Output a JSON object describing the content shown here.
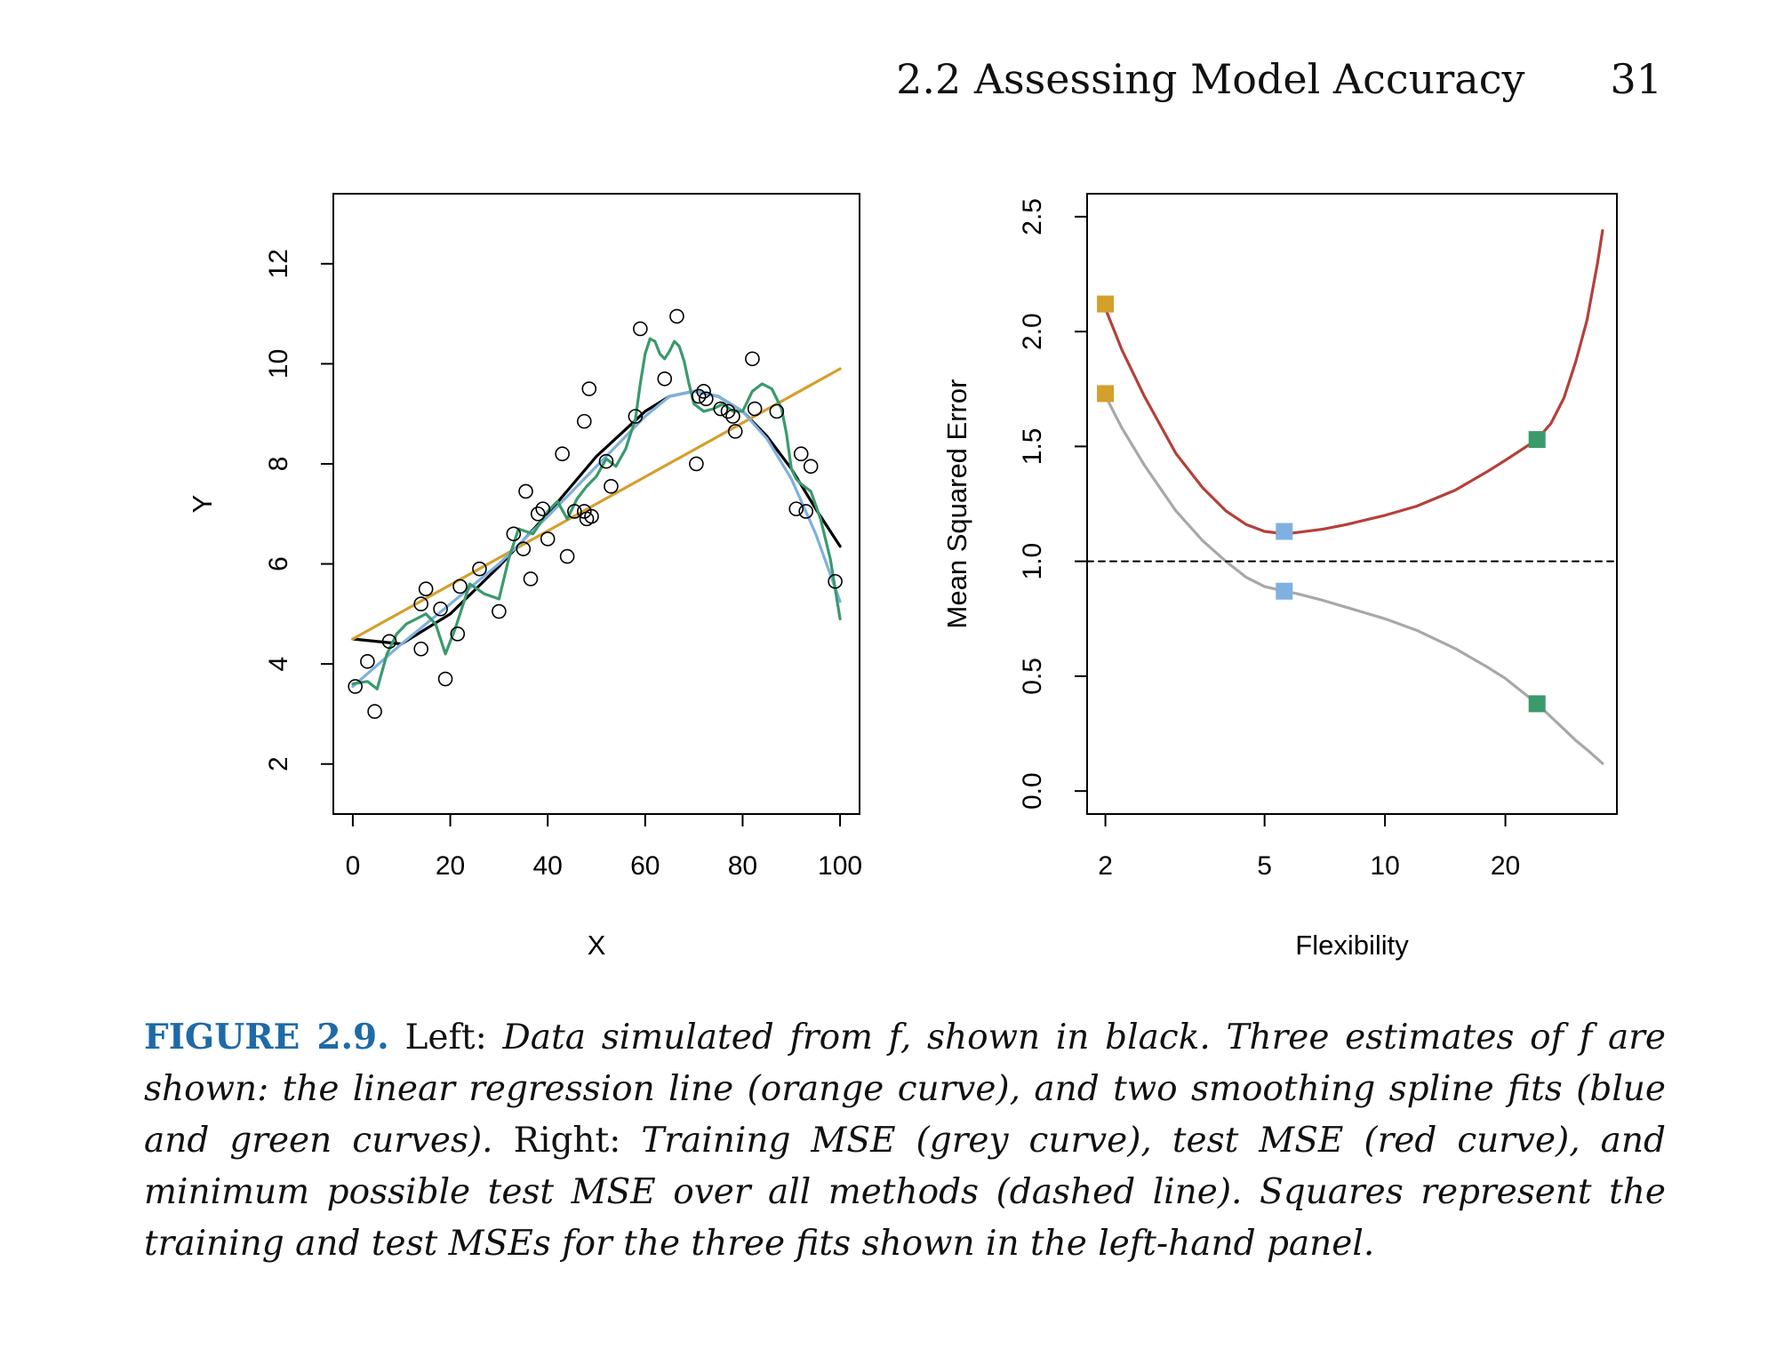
{
  "header": {
    "section_title": "2.2 Assessing Model Accuracy",
    "page_number": "31"
  },
  "chart_data": [
    {
      "type": "scatter",
      "panel": "left",
      "title": "",
      "xlabel": "X",
      "ylabel": "Y",
      "xlim": [
        -4,
        104
      ],
      "ylim": [
        1,
        13.4
      ],
      "xticks": [
        0,
        20,
        40,
        60,
        80,
        100
      ],
      "yticks": [
        2,
        4,
        6,
        8,
        10,
        12
      ],
      "grid": false,
      "points": [
        [
          0.5,
          3.55
        ],
        [
          3,
          4.05
        ],
        [
          4.5,
          3.05
        ],
        [
          7.5,
          4.45
        ],
        [
          14,
          4.3
        ],
        [
          14,
          5.2
        ],
        [
          15,
          5.5
        ],
        [
          18,
          5.1
        ],
        [
          19,
          3.7
        ],
        [
          21.5,
          4.6
        ],
        [
          22,
          5.55
        ],
        [
          26,
          5.9
        ],
        [
          30,
          5.05
        ],
        [
          33,
          6.6
        ],
        [
          35,
          6.3
        ],
        [
          35.5,
          7.45
        ],
        [
          36.5,
          5.7
        ],
        [
          38,
          7.0
        ],
        [
          39,
          7.1
        ],
        [
          40,
          6.5
        ],
        [
          43,
          8.2
        ],
        [
          44,
          6.15
        ],
        [
          45.5,
          7.05
        ],
        [
          47.5,
          8.85
        ],
        [
          47.5,
          7.05
        ],
        [
          48,
          6.9
        ],
        [
          48.5,
          9.5
        ],
        [
          49,
          6.95
        ],
        [
          52,
          8.05
        ],
        [
          53,
          7.55
        ],
        [
          58,
          8.95
        ],
        [
          59,
          10.7
        ],
        [
          64,
          9.7
        ],
        [
          66.5,
          10.95
        ],
        [
          70.5,
          8.0
        ],
        [
          71,
          9.35
        ],
        [
          72,
          9.45
        ],
        [
          72.5,
          9.3
        ],
        [
          75.5,
          9.1
        ],
        [
          77,
          9.05
        ],
        [
          78,
          8.95
        ],
        [
          78.5,
          8.65
        ],
        [
          82,
          10.1
        ],
        [
          82.5,
          9.1
        ],
        [
          87,
          9.05
        ],
        [
          91,
          7.1
        ],
        [
          92,
          8.2
        ],
        [
          93,
          7.05
        ],
        [
          94,
          7.95
        ],
        [
          99,
          5.65
        ]
      ],
      "series": [
        {
          "name": "f",
          "color": "#000000",
          "x": [
            0,
            10,
            20,
            30,
            40,
            50,
            60,
            65,
            70,
            75,
            80,
            85,
            90,
            95,
            100
          ],
          "y": [
            4.5,
            4.4,
            5.0,
            5.95,
            7.0,
            8.15,
            9.05,
            9.35,
            9.45,
            9.35,
            9.05,
            8.55,
            7.9,
            7.1,
            6.35
          ]
        },
        {
          "name": "linear regression",
          "color": "#d4a02c",
          "x": [
            0,
            100
          ],
          "y": [
            4.5,
            9.9
          ]
        },
        {
          "name": "smoothing spline (blue)",
          "color": "#7fb0e0",
          "x": [
            0,
            10,
            20,
            30,
            40,
            50,
            60,
            65,
            70,
            75,
            80,
            85,
            90,
            95,
            100
          ],
          "y": [
            3.55,
            4.4,
            5.2,
            6.0,
            6.95,
            7.95,
            8.95,
            9.35,
            9.45,
            9.35,
            9.05,
            8.5,
            7.7,
            6.6,
            5.25
          ]
        },
        {
          "name": "smoothing spline (green)",
          "color": "#3a9a6c",
          "x": [
            0,
            3,
            5,
            7,
            9,
            11,
            13,
            15,
            17,
            18,
            19,
            21,
            24,
            27,
            30,
            32,
            34,
            37,
            40,
            42,
            44,
            46,
            48,
            50,
            52,
            54,
            56,
            58,
            59,
            60,
            61,
            62,
            63,
            64,
            65,
            66,
            67,
            68,
            69,
            70,
            72,
            74,
            76,
            78,
            80,
            82,
            84,
            86,
            88,
            89,
            90,
            91,
            92,
            94,
            96,
            98,
            100
          ],
          "y": [
            3.6,
            3.65,
            3.5,
            4.2,
            4.6,
            4.8,
            4.9,
            5.0,
            4.8,
            4.5,
            4.2,
            4.7,
            5.6,
            5.4,
            5.3,
            6.1,
            6.7,
            6.6,
            7.05,
            7.25,
            6.9,
            7.3,
            7.55,
            7.75,
            8.1,
            7.95,
            8.3,
            8.9,
            9.6,
            10.2,
            10.5,
            10.45,
            10.2,
            10.1,
            10.25,
            10.45,
            10.35,
            10.05,
            9.6,
            9.2,
            9.05,
            9.1,
            9.2,
            9.05,
            9.05,
            9.45,
            9.6,
            9.5,
            9.1,
            8.6,
            7.9,
            7.7,
            7.6,
            7.45,
            6.9,
            6.1,
            4.9
          ]
        }
      ]
    },
    {
      "type": "line",
      "panel": "right",
      "title": "",
      "xlabel": "Flexibility",
      "ylabel": "Mean Squared Error",
      "xscale": "log",
      "xlim": [
        1.8,
        38
      ],
      "ylim": [
        -0.1,
        2.6
      ],
      "xticks": [
        2,
        5,
        10,
        20
      ],
      "yticks": [
        0.0,
        0.5,
        1.0,
        1.5,
        2.0,
        2.5
      ],
      "grid": false,
      "series": [
        {
          "name": "test MSE",
          "color": "#b5403a",
          "x": [
            2,
            2.2,
            2.5,
            3,
            3.5,
            4,
            4.5,
            5,
            5.6,
            6,
            7,
            8,
            10,
            12,
            15,
            18,
            20,
            24,
            26,
            28,
            30,
            32,
            34,
            35
          ],
          "y": [
            2.1,
            1.92,
            1.72,
            1.47,
            1.32,
            1.22,
            1.16,
            1.13,
            1.12,
            1.125,
            1.14,
            1.16,
            1.2,
            1.24,
            1.31,
            1.39,
            1.44,
            1.53,
            1.6,
            1.71,
            1.87,
            2.05,
            2.3,
            2.44
          ]
        },
        {
          "name": "training MSE",
          "color": "#a8a8a8",
          "x": [
            2,
            2.2,
            2.5,
            3,
            3.5,
            4,
            4.5,
            5,
            5.6,
            6,
            7,
            8,
            10,
            12,
            15,
            18,
            20,
            24,
            28,
            30,
            32,
            35
          ],
          "y": [
            1.72,
            1.58,
            1.42,
            1.22,
            1.09,
            1.0,
            0.93,
            0.89,
            0.87,
            0.86,
            0.83,
            0.8,
            0.75,
            0.7,
            0.62,
            0.54,
            0.49,
            0.38,
            0.27,
            0.22,
            0.18,
            0.12
          ]
        },
        {
          "name": "minimum possible test MSE",
          "color": "#000000",
          "style": "dashed",
          "x": [
            1.8,
            38
          ],
          "y": [
            1.0,
            1.0
          ]
        }
      ],
      "squares": [
        {
          "x": 2,
          "y": 2.12,
          "color": "#d4a02c"
        },
        {
          "x": 2,
          "y": 1.73,
          "color": "#d4a02c"
        },
        {
          "x": 5.6,
          "y": 1.13,
          "color": "#7fb0e0"
        },
        {
          "x": 5.6,
          "y": 0.87,
          "color": "#7fb0e0"
        },
        {
          "x": 24,
          "y": 1.53,
          "color": "#3a9a6c"
        },
        {
          "x": 24,
          "y": 0.38,
          "color": "#3a9a6c"
        }
      ]
    }
  ],
  "caption": {
    "label": "FIGURE 2.9.",
    "left_word": "Left:",
    "left_text": "Data simulated from f, shown in black. Three estimates of f are shown: the linear regression line (orange curve), and two smoothing spline fits (blue and green curves).",
    "right_word": "Right:",
    "right_text": "Training MSE (grey curve), test MSE (red curve), and minimum possible test MSE over all methods (dashed line). Squares represent the training and test MSEs for the three fits shown in the left-hand panel."
  }
}
